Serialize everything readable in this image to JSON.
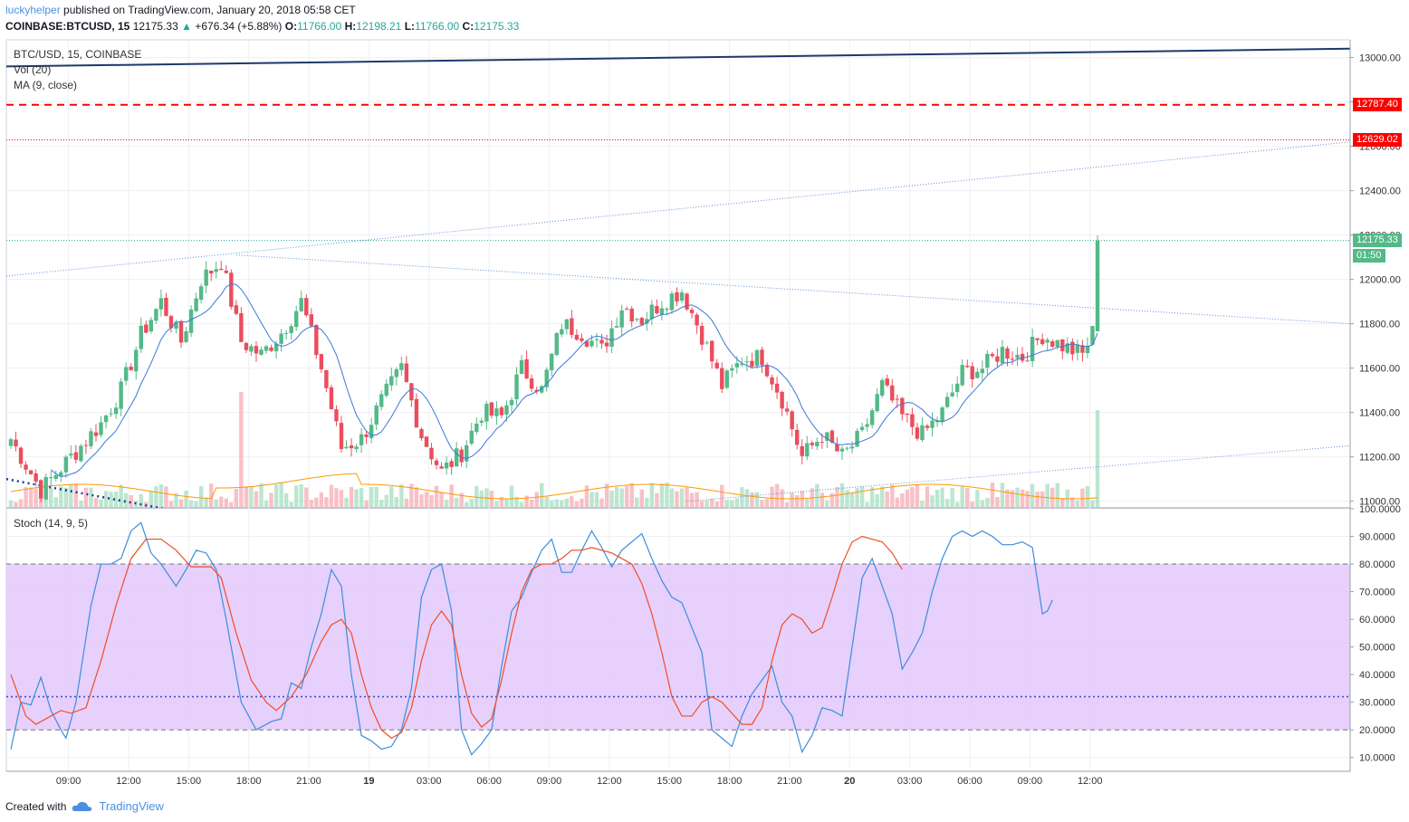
{
  "header": {
    "user": "luckyhelper",
    "published": "published on TradingView.com, January 20, 2018 05:58 CET",
    "symbol": "COINBASE:BTCUSD, 15",
    "last": "12175.33",
    "change": "+676.34 (+5.88%)",
    "o_label": "O:",
    "o_val": "11766.00",
    "h_label": "H:",
    "h_val": "12198.21",
    "l_label": "L:",
    "l_val": "11766.00",
    "c_label": "C:",
    "c_val": "12175.33"
  },
  "legend": {
    "title": "BTC/USD, 15, COINBASE",
    "vol": "Vol (20)",
    "ma": "MA (9, close)",
    "stoch": "Stoch (14, 9, 5)"
  },
  "tags": {
    "red_dashed": "12787.40",
    "red_dotted": "12629.02",
    "last_price": "12175.33",
    "countdown": "01:50"
  },
  "footer": {
    "created": "Created with",
    "brand": "TradingView"
  },
  "colors": {
    "up": "#53b987",
    "down": "#eb4d5c",
    "ma": "#3c78d8",
    "stoch_k": "#3c8ddb",
    "stoch_d": "#f04e23",
    "stoch_band": "#e3c8fb",
    "trend": "#1b3a6b",
    "resistance": "#ff0000"
  },
  "chart_data": [
    {
      "type": "candlestick",
      "title": "BTC/USD, 15, COINBASE",
      "ylim": [
        10970,
        13080
      ],
      "y_ticks": [
        "13000.00",
        "12800.00",
        "12600.00",
        "12400.00",
        "12200.00",
        "12000.00",
        "11800.00",
        "11600.00",
        "11400.00",
        "11200.00",
        "11000.00"
      ],
      "x_ticks": [
        "09:00",
        "12:00",
        "15:00",
        "18:00",
        "21:00",
        "19",
        "03:00",
        "06:00",
        "09:00",
        "12:00",
        "15:00",
        "18:00",
        "21:00",
        "20",
        "03:00",
        "06:00",
        "09:00",
        "12:00"
      ],
      "anchors": [
        {
          "bar": 0,
          "price": 11280
        },
        {
          "bar": 6,
          "price": 11050
        },
        {
          "bar": 12,
          "price": 11200
        },
        {
          "bar": 18,
          "price": 11350
        },
        {
          "bar": 22,
          "price": 11500
        },
        {
          "bar": 26,
          "price": 11750
        },
        {
          "bar": 30,
          "price": 11900
        },
        {
          "bar": 34,
          "price": 11720
        },
        {
          "bar": 38,
          "price": 12000
        },
        {
          "bar": 42,
          "price": 12080
        },
        {
          "bar": 46,
          "price": 11720
        },
        {
          "bar": 50,
          "price": 11660
        },
        {
          "bar": 54,
          "price": 11760
        },
        {
          "bar": 58,
          "price": 11900
        },
        {
          "bar": 62,
          "price": 11600
        },
        {
          "bar": 66,
          "price": 11240
        },
        {
          "bar": 70,
          "price": 11280
        },
        {
          "bar": 74,
          "price": 11450
        },
        {
          "bar": 78,
          "price": 11600
        },
        {
          "bar": 82,
          "price": 11300
        },
        {
          "bar": 86,
          "price": 11130
        },
        {
          "bar": 90,
          "price": 11220
        },
        {
          "bar": 94,
          "price": 11400
        },
        {
          "bar": 98,
          "price": 11380
        },
        {
          "bar": 102,
          "price": 11600
        },
        {
          "bar": 106,
          "price": 11500
        },
        {
          "bar": 110,
          "price": 11800
        },
        {
          "bar": 114,
          "price": 11760
        },
        {
          "bar": 118,
          "price": 11680
        },
        {
          "bar": 122,
          "price": 11880
        },
        {
          "bar": 126,
          "price": 11820
        },
        {
          "bar": 130,
          "price": 11900
        },
        {
          "bar": 134,
          "price": 11950
        },
        {
          "bar": 138,
          "price": 11750
        },
        {
          "bar": 142,
          "price": 11520
        },
        {
          "bar": 146,
          "price": 11640
        },
        {
          "bar": 150,
          "price": 11650
        },
        {
          "bar": 154,
          "price": 11460
        },
        {
          "bar": 158,
          "price": 11200
        },
        {
          "bar": 162,
          "price": 11300
        },
        {
          "bar": 166,
          "price": 11200
        },
        {
          "bar": 170,
          "price": 11300
        },
        {
          "bar": 174,
          "price": 11520
        },
        {
          "bar": 178,
          "price": 11380
        },
        {
          "bar": 182,
          "price": 11300
        },
        {
          "bar": 186,
          "price": 11400
        },
        {
          "bar": 190,
          "price": 11580
        },
        {
          "bar": 194,
          "price": 11600
        },
        {
          "bar": 198,
          "price": 11680
        },
        {
          "bar": 202,
          "price": 11650
        },
        {
          "bar": 206,
          "price": 11750
        },
        {
          "bar": 210,
          "price": 11700
        },
        {
          "bar": 214,
          "price": 11660
        },
        {
          "bar": 216,
          "price": 11760
        },
        {
          "bar": 217,
          "price": 12175
        }
      ],
      "last": {
        "open": 11766.0,
        "high": 12198.21,
        "low": 11766.0,
        "close": 12175.33
      },
      "levels": [
        {
          "name": "resistance-dashed",
          "price": 12787.4
        },
        {
          "name": "resistance-dotted",
          "price": 12629.02
        },
        {
          "name": "last-price",
          "price": 12175.33
        }
      ]
    },
    {
      "type": "line",
      "title": "Stoch (14, 9, 5)",
      "ylim": [
        5,
        100
      ],
      "y_ticks": [
        "100.0000",
        "90.0000",
        "80.0000",
        "70.0000",
        "60.0000",
        "50.0000",
        "40.0000",
        "30.0000",
        "20.0000",
        "10.0000"
      ],
      "band": [
        20,
        80
      ],
      "reference_level": 32,
      "series": [
        {
          "name": "%K",
          "points": [
            [
              0,
              13
            ],
            [
              2,
              30
            ],
            [
              4,
              29
            ],
            [
              6,
              39
            ],
            [
              8,
              27
            ],
            [
              10,
              20
            ],
            [
              11,
              17
            ],
            [
              13,
              30
            ],
            [
              16,
              65
            ],
            [
              18,
              80
            ],
            [
              20,
              80
            ],
            [
              22,
              82
            ],
            [
              24,
              92
            ],
            [
              26,
              95
            ],
            [
              28,
              84
            ],
            [
              30,
              80
            ],
            [
              33,
              72
            ],
            [
              35,
              78
            ],
            [
              37,
              85
            ],
            [
              39,
              84
            ],
            [
              41,
              78
            ],
            [
              43,
              60
            ],
            [
              46,
              30
            ],
            [
              49,
              20
            ],
            [
              52,
              23
            ],
            [
              54,
              24
            ],
            [
              56,
              37
            ],
            [
              58,
              35
            ],
            [
              60,
              50
            ],
            [
              62,
              62
            ],
            [
              64,
              78
            ],
            [
              66,
              72
            ],
            [
              68,
              40
            ],
            [
              70,
              18
            ],
            [
              72,
              16
            ],
            [
              74,
              13
            ],
            [
              76,
              14
            ],
            [
              78,
              20
            ],
            [
              80,
              35
            ],
            [
              82,
              68
            ],
            [
              84,
              78
            ],
            [
              86,
              80
            ],
            [
              88,
              63
            ],
            [
              90,
              20
            ],
            [
              92,
              11
            ],
            [
              94,
              15
            ],
            [
              96,
              20
            ],
            [
              98,
              43
            ],
            [
              100,
              63
            ],
            [
              102,
              68
            ],
            [
              104,
              77
            ],
            [
              106,
              85
            ],
            [
              108,
              89
            ],
            [
              110,
              77
            ],
            [
              112,
              77
            ],
            [
              114,
              85
            ],
            [
              116,
              92
            ],
            [
              118,
              86
            ],
            [
              120,
              79
            ],
            [
              122,
              85
            ],
            [
              124,
              88
            ],
            [
              126,
              91
            ],
            [
              128,
              82
            ],
            [
              130,
              74
            ],
            [
              132,
              68
            ],
            [
              134,
              66
            ],
            [
              136,
              57
            ],
            [
              138,
              48
            ],
            [
              140,
              20
            ],
            [
              142,
              17
            ],
            [
              144,
              14
            ],
            [
              146,
              25
            ],
            [
              148,
              33
            ],
            [
              150,
              38
            ],
            [
              152,
              43
            ],
            [
              154,
              30
            ],
            [
              156,
              25
            ],
            [
              158,
              12
            ],
            [
              160,
              18
            ],
            [
              162,
              28
            ],
            [
              164,
              27
            ],
            [
              166,
              25
            ],
            [
              168,
              50
            ],
            [
              170,
              75
            ],
            [
              172,
              82
            ],
            [
              174,
              72
            ],
            [
              176,
              62
            ],
            [
              178,
              42
            ],
            [
              180,
              48
            ],
            [
              182,
              55
            ],
            [
              184,
              70
            ],
            [
              186,
              82
            ],
            [
              188,
              90
            ],
            [
              190,
              92
            ],
            [
              192,
              90
            ],
            [
              194,
              92
            ],
            [
              196,
              90
            ],
            [
              198,
              87
            ],
            [
              200,
              87
            ],
            [
              202,
              88
            ],
            [
              204,
              86
            ],
            [
              206,
              62
            ],
            [
              207,
              63
            ],
            [
              208,
              67
            ]
          ]
        },
        {
          "name": "%D",
          "points": [
            [
              0,
              40
            ],
            [
              3,
              25
            ],
            [
              5,
              22
            ],
            [
              8,
              25
            ],
            [
              10,
              27
            ],
            [
              12,
              26
            ],
            [
              15,
              28
            ],
            [
              18,
              45
            ],
            [
              21,
              65
            ],
            [
              24,
              82
            ],
            [
              27,
              89
            ],
            [
              30,
              89
            ],
            [
              33,
              85
            ],
            [
              36,
              79
            ],
            [
              38,
              79
            ],
            [
              40,
              79
            ],
            [
              42,
              75
            ],
            [
              45,
              55
            ],
            [
              48,
              38
            ],
            [
              51,
              30
            ],
            [
              53,
              27
            ],
            [
              56,
              32
            ],
            [
              59,
              40
            ],
            [
              62,
              52
            ],
            [
              64,
              58
            ],
            [
              66,
              60
            ],
            [
              68,
              55
            ],
            [
              70,
              40
            ],
            [
              72,
              28
            ],
            [
              74,
              20
            ],
            [
              76,
              17
            ],
            [
              78,
              19
            ],
            [
              80,
              28
            ],
            [
              82,
              45
            ],
            [
              84,
              58
            ],
            [
              86,
              63
            ],
            [
              88,
              58
            ],
            [
              90,
              40
            ],
            [
              92,
              26
            ],
            [
              94,
              21
            ],
            [
              96,
              24
            ],
            [
              98,
              38
            ],
            [
              100,
              55
            ],
            [
              102,
              70
            ],
            [
              104,
              78
            ],
            [
              106,
              80
            ],
            [
              108,
              80
            ],
            [
              110,
              82
            ],
            [
              112,
              85
            ],
            [
              114,
              85
            ],
            [
              116,
              86
            ],
            [
              118,
              85
            ],
            [
              120,
              84
            ],
            [
              122,
              82
            ],
            [
              124,
              80
            ],
            [
              126,
              73
            ],
            [
              128,
              62
            ],
            [
              130,
              48
            ],
            [
              132,
              32
            ],
            [
              134,
              25
            ],
            [
              136,
              25
            ],
            [
              138,
              30
            ],
            [
              140,
              32
            ],
            [
              142,
              30
            ],
            [
              144,
              26
            ],
            [
              146,
              22
            ],
            [
              148,
              22
            ],
            [
              150,
              28
            ],
            [
              152,
              45
            ],
            [
              154,
              58
            ],
            [
              156,
              62
            ],
            [
              158,
              60
            ],
            [
              160,
              55
            ],
            [
              162,
              57
            ],
            [
              164,
              68
            ],
            [
              166,
              80
            ],
            [
              168,
              88
            ],
            [
              170,
              90
            ],
            [
              172,
              89
            ],
            [
              174,
              88
            ],
            [
              176,
              84
            ],
            [
              178,
              78
            ]
          ]
        }
      ]
    },
    {
      "type": "bar",
      "title": "Vol (20)",
      "note": "volume histogram at bottom of price pane; two spikes near 15:30 and at the final bar"
    }
  ]
}
